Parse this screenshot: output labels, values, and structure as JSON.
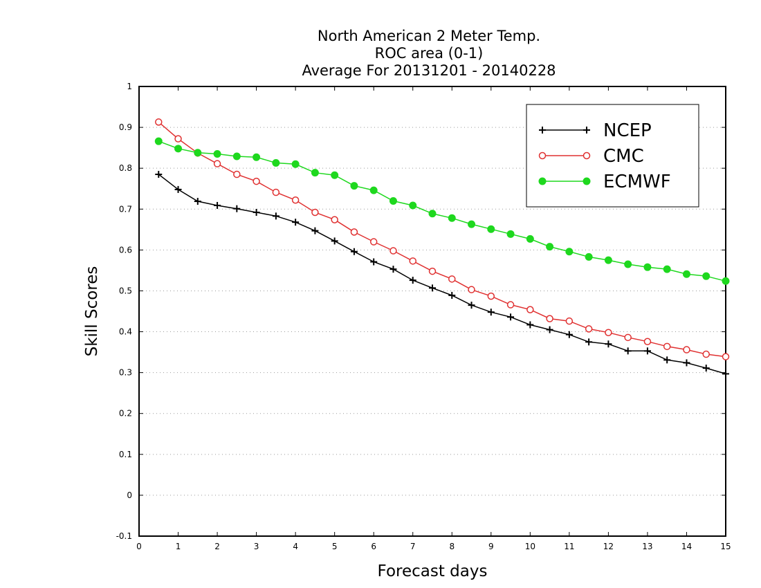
{
  "chart_data": {
    "type": "line",
    "title_lines": [
      "North American 2 Meter Temp.",
      "ROC area (0-1)",
      "Average For 20131201 - 20140228"
    ],
    "xlabel": "Forecast days",
    "ylabel": "Skill Scores",
    "xlim": [
      0,
      15
    ],
    "ylim": [
      -0.1,
      1
    ],
    "x_ticks": [
      "0",
      "1",
      "2",
      "3",
      "4",
      "5",
      "6",
      "7",
      "8",
      "9",
      "10",
      "11",
      "12",
      "13",
      "14",
      "15"
    ],
    "y_ticks": [
      "-0.1",
      "0",
      "0.1",
      "0.2",
      "0.3",
      "0.4",
      "0.5",
      "0.6",
      "0.7",
      "0.8",
      "0.9",
      "1"
    ],
    "grid": "horizontal dotted",
    "legend_position": "top-right",
    "x": [
      0.5,
      1,
      1.5,
      2,
      2.5,
      3,
      3.5,
      4,
      4.5,
      5,
      5.5,
      6,
      6.5,
      7,
      7.5,
      8,
      8.5,
      9,
      9.5,
      10,
      10.5,
      11,
      11.5,
      12,
      12.5,
      13,
      13.5,
      14,
      14.5,
      15
    ],
    "series": [
      {
        "name": "NCEP",
        "color": "#000000",
        "marker": "plus",
        "values": [
          0.785,
          0.748,
          0.719,
          0.709,
          0.701,
          0.692,
          0.683,
          0.668,
          0.647,
          0.622,
          0.596,
          0.571,
          0.553,
          0.526,
          0.507,
          0.489,
          0.465,
          0.448,
          0.436,
          0.417,
          0.405,
          0.393,
          0.375,
          0.37,
          0.353,
          0.353,
          0.331,
          0.324,
          0.311,
          0.297
        ]
      },
      {
        "name": "CMC",
        "color": "#e03030",
        "marker": "open-circle",
        "values": [
          0.913,
          0.872,
          0.837,
          0.811,
          0.785,
          0.768,
          0.741,
          0.722,
          0.692,
          0.674,
          0.644,
          0.62,
          0.598,
          0.573,
          0.548,
          0.529,
          0.503,
          0.487,
          0.466,
          0.454,
          0.432,
          0.426,
          0.407,
          0.398,
          0.386,
          0.376,
          0.364,
          0.356,
          0.345,
          0.339
        ]
      },
      {
        "name": "ECMWF",
        "color": "#1ed81e",
        "marker": "filled-circle",
        "values": [
          0.866,
          0.848,
          0.838,
          0.835,
          0.829,
          0.827,
          0.813,
          0.81,
          0.789,
          0.783,
          0.757,
          0.746,
          0.72,
          0.709,
          0.689,
          0.678,
          0.663,
          0.651,
          0.639,
          0.627,
          0.608,
          0.596,
          0.583,
          0.575,
          0.565,
          0.558,
          0.553,
          0.541,
          0.536,
          0.524
        ]
      }
    ]
  }
}
